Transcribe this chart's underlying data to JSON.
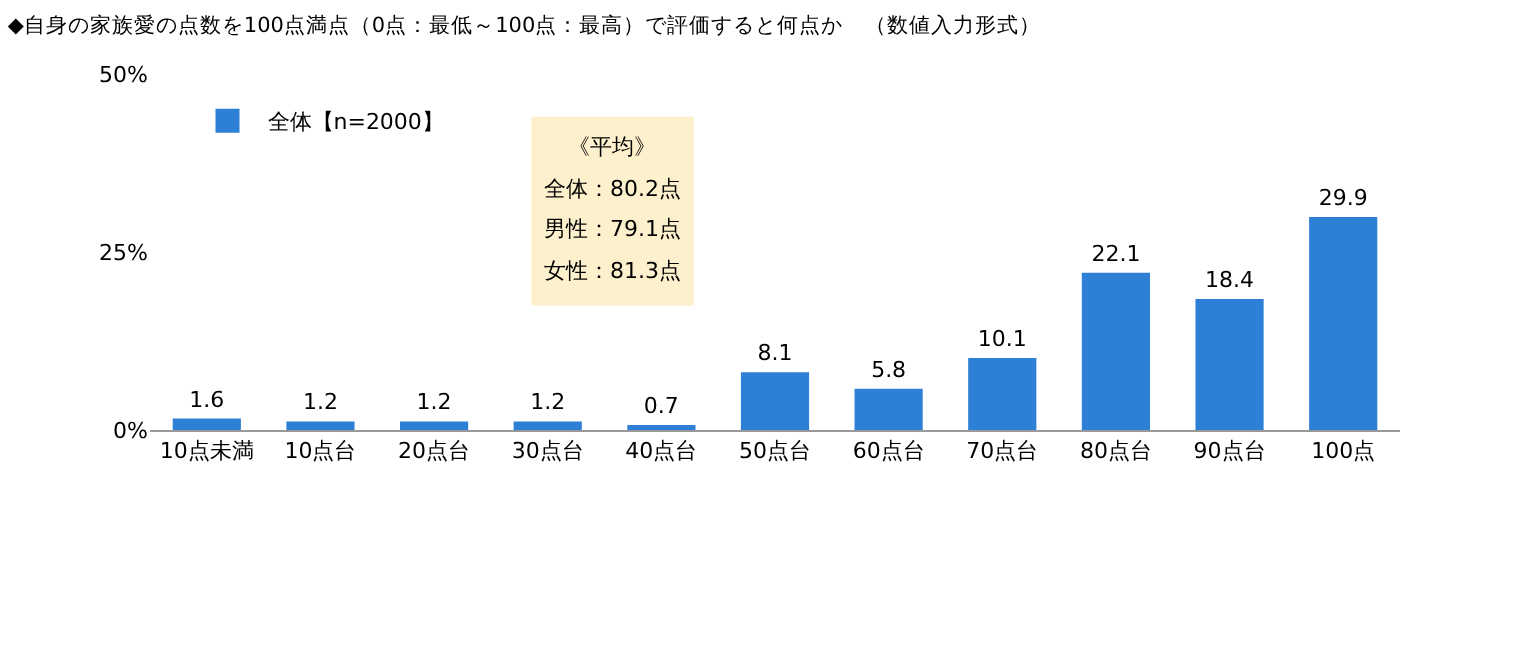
{
  "chart_data": {
    "type": "bar",
    "title": "◆自身の家族愛の点数を100点満点（0点：最低～100点：最高）で評価すると何点か　（数値入力形式）",
    "categories": [
      "10点未満",
      "10点台",
      "20点台",
      "30点台",
      "40点台",
      "50点台",
      "60点台",
      "70点台",
      "80点台",
      "90点台",
      "100点"
    ],
    "series": [
      {
        "name": "全体【n=2000】",
        "color": "#2e7fd6",
        "values": [
          1.6,
          1.2,
          1.2,
          1.2,
          0.7,
          8.1,
          5.8,
          10.1,
          22.1,
          18.4,
          29.9
        ]
      }
    ],
    "ylim": [
      0,
      50
    ],
    "yticks": [
      {
        "value": 0,
        "label": "0%"
      },
      {
        "value": 25,
        "label": "25%"
      },
      {
        "value": 50,
        "label": "50%"
      }
    ],
    "data_labels": true,
    "grid": false,
    "legend": "top left",
    "annotations": [
      "《平均》",
      "全体：80.2点",
      "男性：79.1点",
      "女性：81.3点"
    ]
  }
}
